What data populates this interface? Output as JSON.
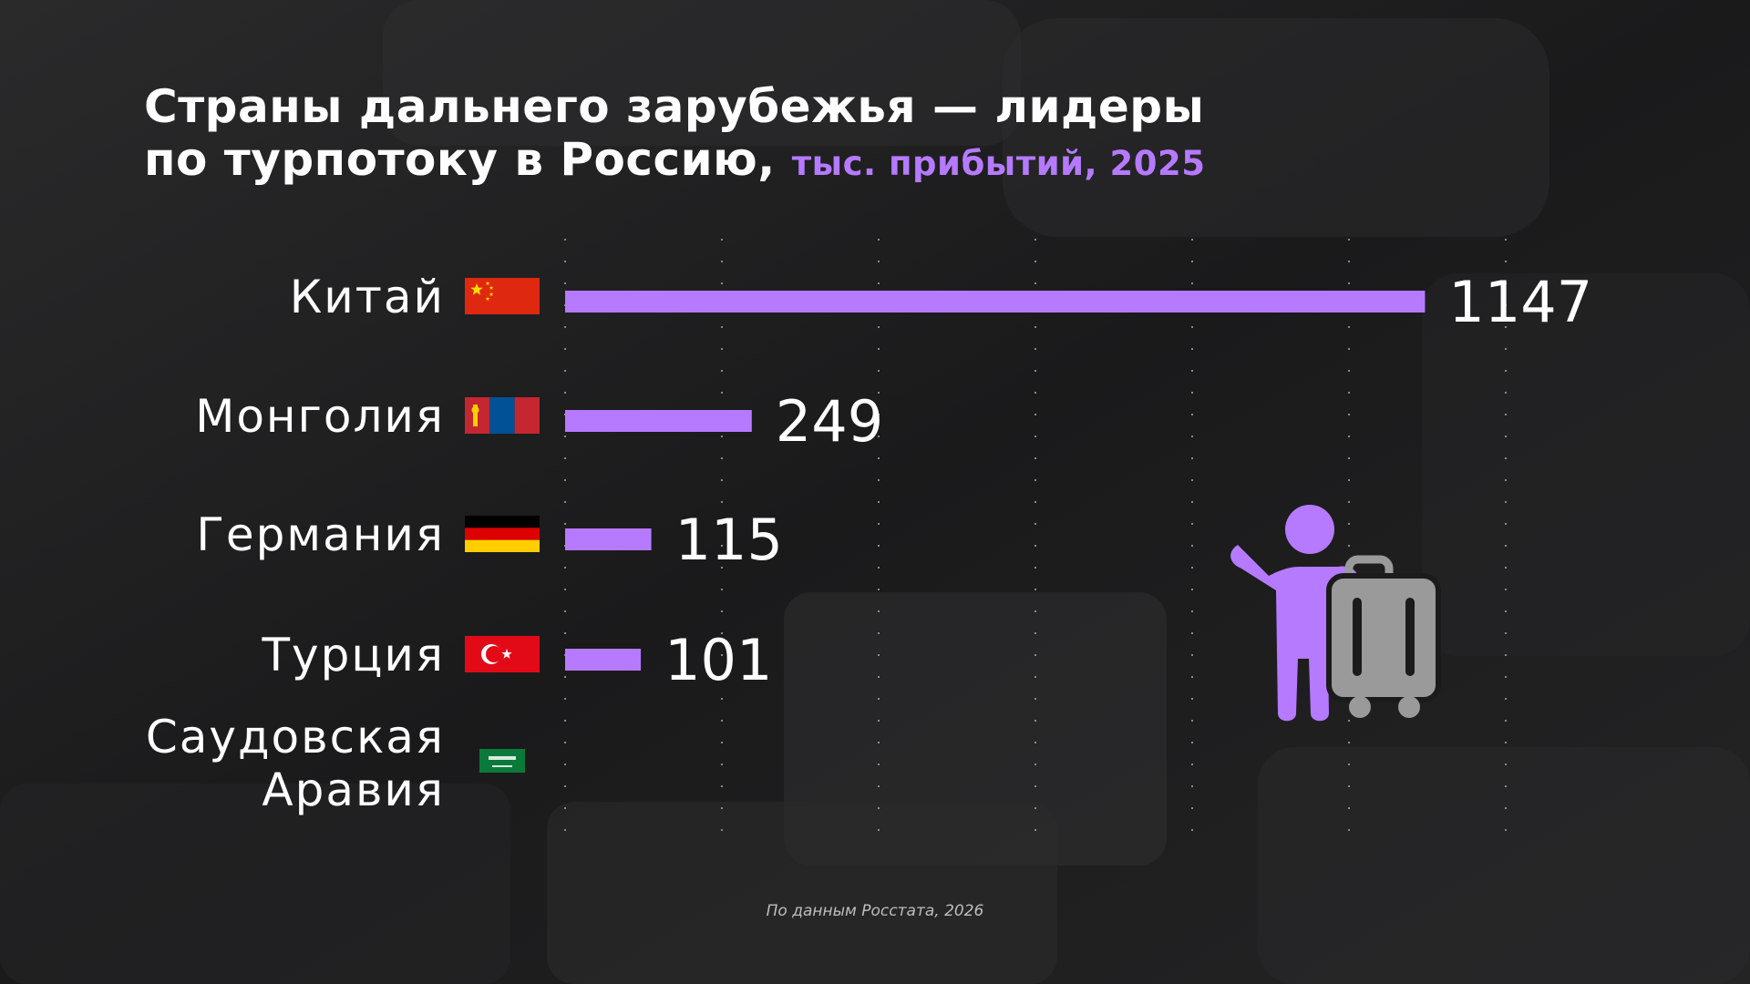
{
  "header": {
    "title_line1": "Страны дальнего зарубежья — лидеры",
    "title_line2": "по турпотоку в Россию,",
    "title_unit": "тыс. прибытий, 2025"
  },
  "footer": {
    "source": "По данным Росстата, 2026"
  },
  "icons": {
    "illustration": "traveler-with-suitcase-icon"
  },
  "colors": {
    "bar": "#b57aff",
    "suitcase": "#9a9a9a",
    "background": "#1b1b1c"
  },
  "chart_data": {
    "type": "bar",
    "orientation": "horizontal",
    "categories": [
      "Китай",
      "Монголия",
      "Германия",
      "Турция",
      "Саудовская Аравия"
    ],
    "category_lines": [
      [
        "Китай"
      ],
      [
        "Монголия"
      ],
      [
        "Германия"
      ],
      [
        "Турция"
      ],
      [
        "Саудовская",
        "Аравия"
      ]
    ],
    "values": [
      1147,
      249,
      115,
      101,
      null
    ],
    "value_labels": [
      "1147",
      "249",
      "115",
      "101",
      ""
    ],
    "flags": [
      "china-flag-icon",
      "mongolia-flag-icon",
      "germany-flag-icon",
      "turkey-flag-icon",
      "saudi-arabia-flag-icon"
    ],
    "xlim": [
      0,
      1200
    ],
    "grid": true,
    "legend": "none"
  }
}
